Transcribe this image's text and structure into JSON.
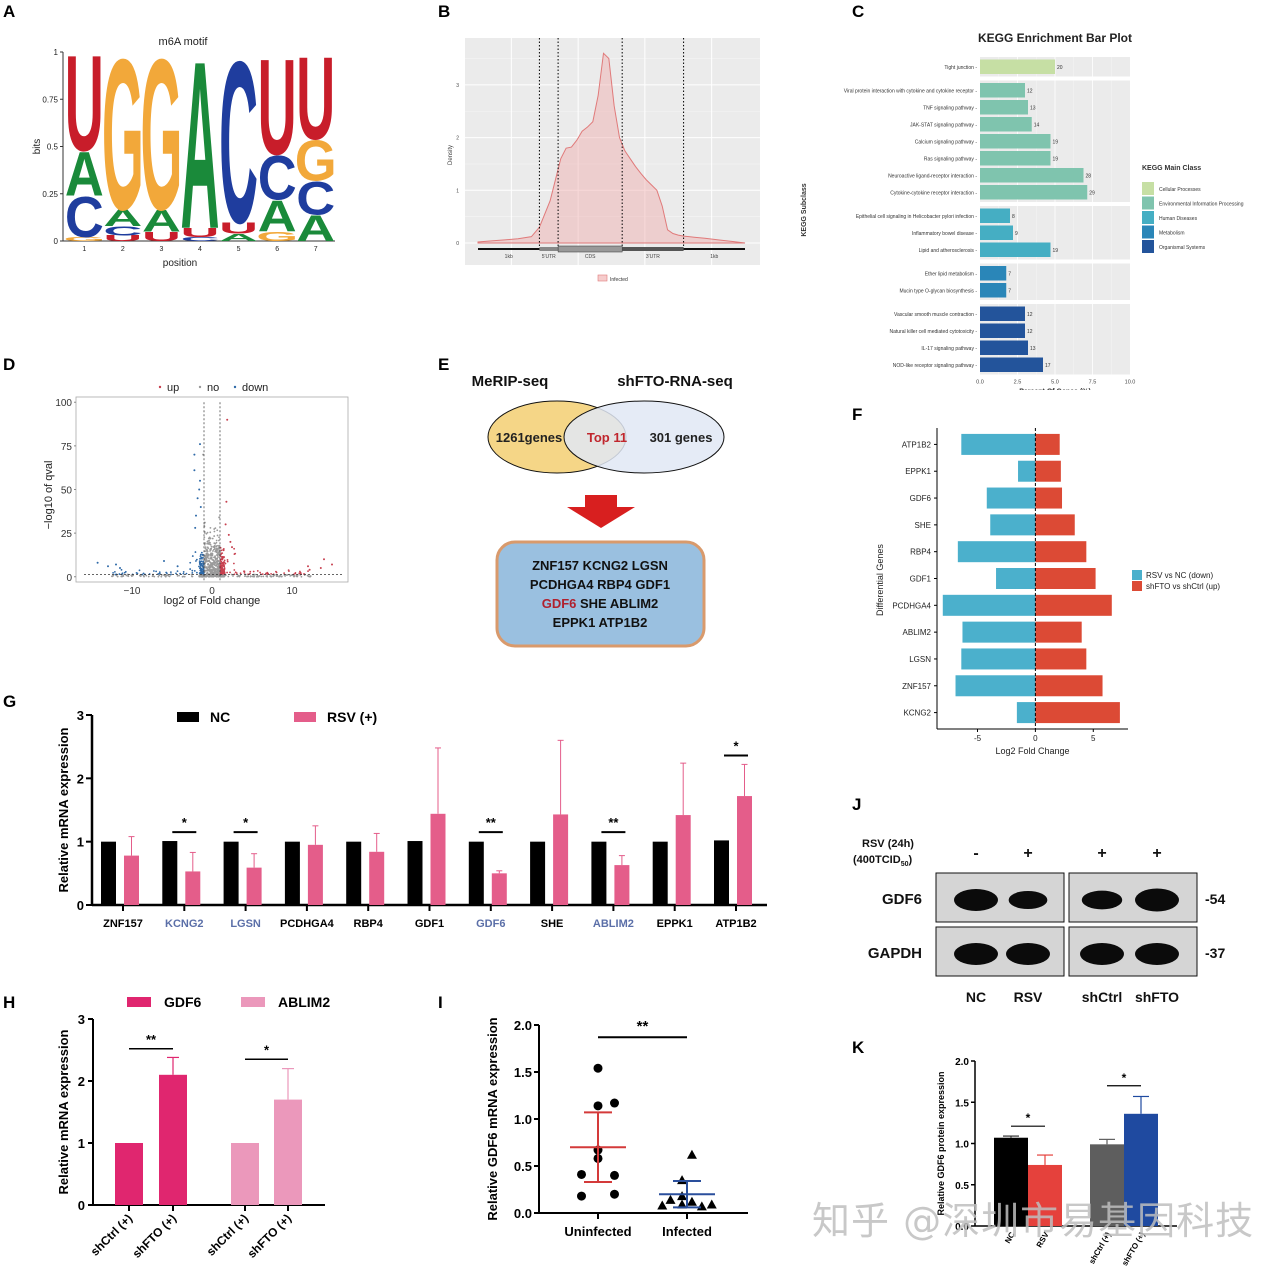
{
  "panel_labels": {
    "A": "A",
    "B": "B",
    "C": "C",
    "D": "D",
    "E": "E",
    "F": "F",
    "G": "G",
    "H": "H",
    "I": "I",
    "J": "J",
    "K": "K"
  },
  "watermark": "知乎 @深圳市易基因科技",
  "chart_data": [
    {
      "id": "A",
      "type": "sequence-logo",
      "title": "m6A motif",
      "xlabel": "position",
      "ylabel": "bits",
      "ylim": [
        0,
        1
      ],
      "yticks": [
        "0",
        "0.25",
        "0.5",
        "0.75",
        "1"
      ],
      "positions": [
        "1",
        "2",
        "3",
        "4",
        "5",
        "6",
        "7"
      ],
      "colors": {
        "A": "#1a8a3a",
        "C": "#1f3d9e",
        "G": "#f2a83a",
        "U": "#c81d2a"
      },
      "stacks": [
        [
          {
            "l": "G",
            "h": 0.02
          },
          {
            "l": "C",
            "h": 0.22
          },
          {
            "l": "A",
            "h": 0.24
          },
          {
            "l": "U",
            "h": 0.52
          }
        ],
        [
          {
            "l": "U",
            "h": 0.03
          },
          {
            "l": "C",
            "h": 0.05
          },
          {
            "l": "A",
            "h": 0.09
          },
          {
            "l": "G",
            "h": 0.82
          }
        ],
        [
          {
            "l": "U",
            "h": 0.05
          },
          {
            "l": "A",
            "h": 0.12
          },
          {
            "l": "G",
            "h": 0.82
          }
        ],
        [
          {
            "l": "C",
            "h": 0.02
          },
          {
            "l": "U",
            "h": 0.05
          },
          {
            "l": "A",
            "h": 0.91
          }
        ],
        [
          {
            "l": "A",
            "h": 0.04
          },
          {
            "l": "U",
            "h": 0.06
          },
          {
            "l": "C",
            "h": 0.88
          }
        ],
        [
          {
            "l": "G",
            "h": 0.05
          },
          {
            "l": "A",
            "h": 0.17
          },
          {
            "l": "C",
            "h": 0.24
          },
          {
            "l": "U",
            "h": 0.52
          }
        ],
        [
          {
            "l": "A",
            "h": 0.14
          },
          {
            "l": "C",
            "h": 0.18
          },
          {
            "l": "G",
            "h": 0.22
          },
          {
            "l": "U",
            "h": 0.45
          }
        ]
      ]
    },
    {
      "id": "B",
      "type": "area",
      "ylabel": "Density",
      "yticks": [
        "0",
        "1",
        "2",
        "3"
      ],
      "ylim": [
        0,
        3.7
      ],
      "x_segments": [
        "1kb",
        "5'UTR",
        "CDS",
        "3'UTR",
        "1kb"
      ],
      "x": [
        0,
        0.05,
        0.1,
        0.15,
        0.2,
        0.23,
        0.25,
        0.27,
        0.29,
        0.31,
        0.33,
        0.35,
        0.37,
        0.39,
        0.41,
        0.43,
        0.45,
        0.47,
        0.49,
        0.51,
        0.53,
        0.55,
        0.57,
        0.59,
        0.61,
        0.63,
        0.65,
        0.67,
        0.69,
        0.71,
        0.73,
        0.75,
        0.77,
        0.79,
        0.81,
        0.85,
        0.9,
        0.95,
        1.0
      ],
      "y": [
        0.02,
        0.04,
        0.06,
        0.08,
        0.12,
        0.3,
        0.55,
        0.8,
        1.2,
        1.6,
        1.8,
        1.82,
        1.95,
        2.12,
        2.2,
        2.3,
        2.8,
        3.6,
        3.5,
        2.6,
        2.0,
        1.75,
        1.6,
        1.45,
        1.32,
        1.2,
        1.1,
        1.0,
        0.7,
        0.25,
        0.18,
        0.15,
        0.13,
        0.12,
        0.11,
        0.09,
        0.06,
        0.03,
        0.0
      ],
      "vlines": [
        0.23,
        0.3,
        0.54,
        0.77
      ],
      "legend": [
        "Infected"
      ],
      "color": "#e07a7a"
    },
    {
      "id": "C",
      "type": "bar",
      "orientation": "horizontal",
      "title": "KEGG Enrichment Bar Plot",
      "xlabel": "Percent Of Genes (%)",
      "ylabel": "KEGG Subclass",
      "xlim": [
        0,
        10
      ],
      "xticks": [
        "0.0",
        "2.5",
        "5.0",
        "7.5",
        "10.0"
      ],
      "legend_title": "KEGG Main Class",
      "classes": [
        {
          "name": "Cellular Processes",
          "color": "#c6dfa4"
        },
        {
          "name": "Environmental Information Processing",
          "color": "#7fc4ae"
        },
        {
          "name": "Human Diseases",
          "color": "#45aec3"
        },
        {
          "name": "Metabolism",
          "color": "#2a86b8"
        },
        {
          "name": "Organismal Systems",
          "color": "#23549b"
        }
      ],
      "groups": [
        {
          "class": 0,
          "bars": [
            {
              "label": "Tight junction",
              "pct": 5.0,
              "count": "20"
            }
          ]
        },
        {
          "class": 1,
          "bars": [
            {
              "label": "Viral protein interaction with cytokine and cytokine receptor",
              "pct": 3.0,
              "count": "12"
            },
            {
              "label": "TNF signaling pathway",
              "pct": 3.2,
              "count": "13"
            },
            {
              "label": "JAK-STAT signaling pathway",
              "pct": 3.45,
              "count": "14"
            },
            {
              "label": "Calcium signaling pathway",
              "pct": 4.7,
              "count": "19"
            },
            {
              "label": "Ras signaling pathway",
              "pct": 4.7,
              "count": "19"
            },
            {
              "label": "Neuroactive ligand-receptor interaction",
              "pct": 6.9,
              "count": "28"
            },
            {
              "label": "Cytokine-cytokine receptor interaction",
              "pct": 7.15,
              "count": "29"
            }
          ]
        },
        {
          "class": 2,
          "bars": [
            {
              "label": "Epithelial cell signaling in Helicobacter pylori infection",
              "pct": 2.0,
              "count": "8"
            },
            {
              "label": "Inflammatory bowel disease",
              "pct": 2.2,
              "count": "9"
            },
            {
              "label": "Lipid and atherosclerosis",
              "pct": 4.7,
              "count": "19"
            }
          ]
        },
        {
          "class": 3,
          "bars": [
            {
              "label": "Ether lipid metabolism",
              "pct": 1.75,
              "count": "7"
            },
            {
              "label": "Mucin type O-glycan biosynthesis",
              "pct": 1.75,
              "count": "7"
            }
          ]
        },
        {
          "class": 4,
          "bars": [
            {
              "label": "Vascular smooth muscle contraction",
              "pct": 3.0,
              "count": "12"
            },
            {
              "label": "Natural killer cell mediated cytotoxicity",
              "pct": 3.0,
              "count": "12"
            },
            {
              "label": "IL-17 signaling pathway",
              "pct": 3.2,
              "count": "13"
            },
            {
              "label": "NOD-like receptor signaling pathway",
              "pct": 4.2,
              "count": "17"
            }
          ]
        }
      ]
    },
    {
      "id": "D",
      "type": "scatter",
      "xlabel": "log2 of Fold change",
      "ylabel": "−log10 of qval",
      "xlim": [
        -17,
        17
      ],
      "ylim": [
        -3,
        103
      ],
      "xticks": [
        -10,
        0,
        10
      ],
      "yticks": [
        0,
        25,
        50,
        75,
        100
      ],
      "legend": [
        {
          "name": "up",
          "color": "#c8404f"
        },
        {
          "name": "no",
          "color": "#9a9a9a"
        },
        {
          "name": "down",
          "color": "#2f6aa8"
        }
      ],
      "fc_threshold": 1,
      "q_threshold": 1.3,
      "highlight_points": [
        {
          "x": -14.3,
          "y": 8,
          "g": "down"
        },
        {
          "x": -13,
          "y": 6,
          "g": "down"
        },
        {
          "x": -12,
          "y": 7,
          "g": "down"
        },
        {
          "x": -11.5,
          "y": 5,
          "g": "down"
        },
        {
          "x": -6,
          "y": 9,
          "g": "down"
        },
        {
          "x": -4.3,
          "y": 6,
          "g": "down"
        },
        {
          "x": -2.2,
          "y": 70,
          "g": "down"
        },
        {
          "x": -2.2,
          "y": 61,
          "g": "down"
        },
        {
          "x": -1.5,
          "y": 76,
          "g": "down"
        },
        {
          "x": -1.5,
          "y": 55,
          "g": "down"
        },
        {
          "x": -1.6,
          "y": 50,
          "g": "down"
        },
        {
          "x": -1.8,
          "y": 45,
          "g": "down"
        },
        {
          "x": -2.0,
          "y": 35,
          "g": "down"
        },
        {
          "x": -2.1,
          "y": 28,
          "g": "down"
        },
        {
          "x": -1.4,
          "y": 40,
          "g": "down"
        },
        {
          "x": -1.1,
          "y": 70,
          "g": "no"
        },
        {
          "x": -0.9,
          "y": 31,
          "g": "no"
        },
        {
          "x": 0.9,
          "y": 34,
          "g": "no"
        },
        {
          "x": 1.9,
          "y": 90,
          "g": "up"
        },
        {
          "x": 1.8,
          "y": 43,
          "g": "up"
        },
        {
          "x": 1.7,
          "y": 30,
          "g": "up"
        },
        {
          "x": 2.1,
          "y": 24,
          "g": "up"
        },
        {
          "x": 2.3,
          "y": 20,
          "g": "up"
        },
        {
          "x": 2.5,
          "y": 17,
          "g": "up"
        },
        {
          "x": 12,
          "y": 6,
          "g": "up"
        },
        {
          "x": 12.2,
          "y": 4,
          "g": "up"
        },
        {
          "x": 13.6,
          "y": 5,
          "g": "up"
        },
        {
          "x": 14,
          "y": 10,
          "g": "up"
        },
        {
          "x": 15,
          "y": 7,
          "g": "up"
        }
      ]
    },
    {
      "id": "E",
      "type": "venn",
      "set_labels": [
        "MeRIP-seq",
        "shFTO-RNA-seq"
      ],
      "left_only": "1261genes",
      "overlap": "Top 11",
      "right_only": "301 genes",
      "gene_lines": [
        [
          "ZNF157",
          "KCNG2",
          "LGSN"
        ],
        [
          "PCDHGA4",
          "RBP4",
          "GDF1"
        ],
        [
          "GDF6",
          "SHE",
          "ABLIM2"
        ],
        [
          "EPPK1",
          "ATP1B2"
        ]
      ],
      "highlight_gene": "GDF6"
    },
    {
      "id": "F",
      "type": "bar",
      "orientation": "horizontal-diverging",
      "xlabel": "Log2 Fold Change",
      "ylabel": "Differential Genes",
      "xlim": [
        -8.5,
        8
      ],
      "xticks": [
        -5,
        0,
        5
      ],
      "categories": [
        "ATP1B2",
        "EPPK1",
        "GDF6",
        "SHE",
        "RBP4",
        "GDF1",
        "PCDHGA4",
        "ABLIM2",
        "LGSN",
        "ZNF157",
        "KCNG2"
      ],
      "series": [
        {
          "name": "RSV vs NC (down)",
          "color": "#4bb0cc",
          "values": [
            -6.4,
            -1.5,
            -4.2,
            -3.9,
            -6.7,
            -3.4,
            -8.0,
            -6.3,
            -6.4,
            -6.9,
            -1.6
          ]
        },
        {
          "name": "shFTO vs shCtrl (up)",
          "color": "#dc4a35",
          "values": [
            2.1,
            2.2,
            2.3,
            3.4,
            4.4,
            5.2,
            6.6,
            4.0,
            4.4,
            5.8,
            7.3
          ]
        }
      ]
    },
    {
      "id": "G",
      "type": "bar",
      "ylabel": "Relative mRNA expression",
      "ylim": [
        0,
        3
      ],
      "yticks": [
        "0",
        "1",
        "2",
        "3"
      ],
      "categories": [
        "ZNF157",
        "KCNG2",
        "LGSN",
        "PCDHGA4",
        "RBP4",
        "GDF1",
        "GDF6",
        "SHE",
        "ABLIM2",
        "EPPK1",
        "ATP1B2"
      ],
      "highlight_categories": [
        "KCNG2",
        "LGSN",
        "GDF6",
        "ABLIM2"
      ],
      "highlight_color": "#5b6fa8",
      "series": [
        {
          "name": "NC",
          "color": "#000000",
          "values": [
            1,
            1.01,
            1,
            1,
            1,
            1.01,
            1,
            1,
            1,
            1,
            1.02
          ],
          "err": [
            0,
            0,
            0,
            0,
            0,
            0,
            0,
            0,
            0,
            0,
            0
          ]
        },
        {
          "name": "RSV (+)",
          "color": "#e45d8a",
          "values": [
            0.78,
            0.53,
            0.59,
            0.95,
            0.84,
            1.44,
            0.5,
            1.43,
            0.63,
            1.42,
            1.72
          ],
          "err": [
            0.3,
            0.3,
            0.22,
            0.3,
            0.29,
            1.04,
            0.04,
            1.17,
            0.15,
            0.82,
            0.5
          ]
        }
      ],
      "significance": [
        {
          "index": 1,
          "label": "*"
        },
        {
          "index": 2,
          "label": "*"
        },
        {
          "index": 6,
          "label": "**"
        },
        {
          "index": 8,
          "label": "**"
        },
        {
          "index": 10,
          "label": "*"
        }
      ]
    },
    {
      "id": "H",
      "type": "bar",
      "ylabel": "Relative mRNA expression",
      "ylim": [
        0,
        3
      ],
      "yticks": [
        "0",
        "1",
        "2",
        "3"
      ],
      "legend": [
        {
          "name": "GDF6",
          "color": "#e0266f"
        },
        {
          "name": "ABLIM2",
          "color": "#eb98bb"
        }
      ],
      "groups": [
        {
          "name": "GDF6",
          "color": "#e0266f",
          "bars": [
            {
              "label": "shCtrl (+)",
              "value": 1.0,
              "err": 0
            },
            {
              "label": "shFTO (+)",
              "value": 2.1,
              "err": 0.28
            }
          ],
          "sig": "**"
        },
        {
          "name": "ABLIM2",
          "color": "#eb98bb",
          "bars": [
            {
              "label": "shCtrl (+)",
              "value": 1.0,
              "err": 0
            },
            {
              "label": "shFTO (+)",
              "value": 1.7,
              "err": 0.5
            }
          ],
          "sig": "*"
        }
      ]
    },
    {
      "id": "I",
      "type": "scatter",
      "ylabel": "Relative  GDF6 mRNA expression",
      "ylim": [
        0,
        2
      ],
      "yticks": [
        "0.0",
        "0.5",
        "1.0",
        "1.5",
        "2.0"
      ],
      "categories": [
        "Uninfected",
        "Infected"
      ],
      "groups": [
        {
          "name": "Uninfected",
          "marker": "circle",
          "color": "#000000",
          "bar_color": "#d43a3a",
          "mean": 0.7,
          "sd_low": 0.33,
          "sd_high": 1.07,
          "points": [
            {
              "dx": 0,
              "y": 1.54
            },
            {
              "dx": 0,
              "y": 1.14
            },
            {
              "dx": 0.5,
              "y": 1.17
            },
            {
              "dx": 0,
              "y": 0.67
            },
            {
              "dx": 0,
              "y": 0.58
            },
            {
              "dx": -0.5,
              "y": 0.41
            },
            {
              "dx": 0.5,
              "y": 0.4
            },
            {
              "dx": -0.5,
              "y": 0.18
            },
            {
              "dx": 0.5,
              "y": 0.2
            }
          ]
        },
        {
          "name": "Infected",
          "marker": "triangle",
          "color": "#000000",
          "bar_color": "#2a4f9c",
          "mean": 0.2,
          "sd_low": 0.06,
          "sd_high": 0.34,
          "points": [
            {
              "dx": 0.15,
              "y": 0.62
            },
            {
              "dx": -0.15,
              "y": 0.35
            },
            {
              "dx": -0.15,
              "y": 0.18
            },
            {
              "dx": -0.5,
              "y": 0.14
            },
            {
              "dx": 0.15,
              "y": 0.12
            },
            {
              "dx": -0.75,
              "y": 0.08
            },
            {
              "dx": -0.15,
              "y": 0.09
            },
            {
              "dx": 0.45,
              "y": 0.07
            },
            {
              "dx": 0.75,
              "y": 0.09
            }
          ]
        }
      ],
      "significance": "**"
    },
    {
      "id": "K",
      "type": "bar",
      "ylabel": "Relative  GDF6 protein expression",
      "ylim": [
        0,
        2
      ],
      "yticks": [
        "0.0",
        "0.5",
        "1.0",
        "1.5",
        "2.0"
      ],
      "categories": [
        "NC",
        "RSV",
        "shCtrl (+)",
        "shFTO (+)"
      ],
      "values": [
        1.07,
        0.74,
        0.99,
        1.36
      ],
      "err": [
        0.02,
        0.12,
        0.06,
        0.21
      ],
      "colors": [
        "#000000",
        "#e5413c",
        "#5e5e5e",
        "#1f4aa0"
      ],
      "significance": [
        {
          "pair": [
            0,
            1
          ],
          "label": "*"
        },
        {
          "pair": [
            2,
            3
          ],
          "label": "*"
        }
      ]
    }
  ],
  "western_blot": {
    "treatment_label_line1": "RSV (24h)",
    "treatment_label_line2": "(400TCID",
    "treatment_label_sub": "50",
    "treatment_label_close": ")",
    "treatment_signs": [
      "-",
      "+",
      "+",
      "+"
    ],
    "rows": [
      {
        "protein": "GDF6",
        "kda": "-54",
        "intensity": [
          1.0,
          0.78,
          0.82,
          1.05
        ]
      },
      {
        "protein": "GAPDH",
        "kda": "-37",
        "intensity": [
          1.0,
          1.0,
          1.0,
          1.0
        ]
      }
    ],
    "lanes": [
      "NC",
      "RSV",
      "shCtrl",
      "shFTO"
    ]
  }
}
